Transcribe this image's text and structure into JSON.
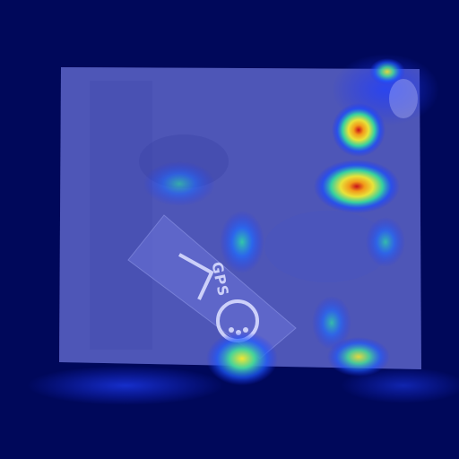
{
  "image": {
    "kind": "attention heatmap overlay on photograph",
    "tag_text": "GPS",
    "colors": {
      "background": "#00085a",
      "photo_tint": "#5a63c6",
      "heat_low": "#1b33ff",
      "heat_mid": "#2fd3a8",
      "heat_high": "#f2e633",
      "heat_peak": "#c8101a"
    }
  }
}
